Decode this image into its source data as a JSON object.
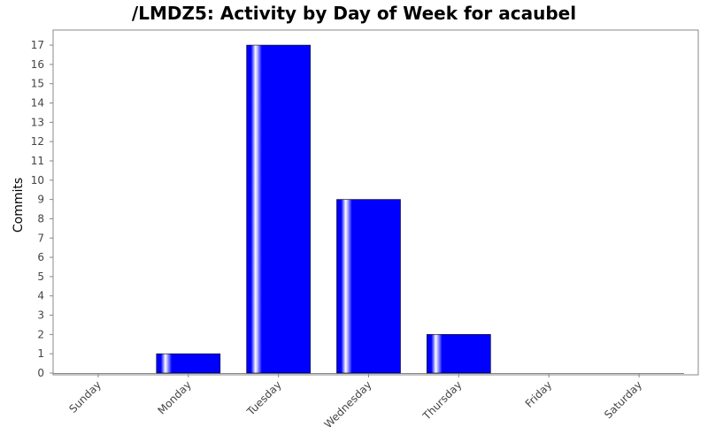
{
  "chart_data": {
    "type": "bar",
    "title": "/LMDZ5: Activity by Day of Week for acaubel",
    "xlabel": "",
    "ylabel": "Commits",
    "categories": [
      "Sunday",
      "Monday",
      "Tuesday",
      "Wednesday",
      "Thursday",
      "Friday",
      "Saturday"
    ],
    "values": [
      0,
      1,
      17,
      9,
      2,
      0,
      0
    ],
    "ylim": [
      0,
      17.8
    ],
    "yticks": [
      0,
      1,
      2,
      3,
      4,
      5,
      6,
      7,
      8,
      9,
      10,
      11,
      12,
      13,
      14,
      15,
      16,
      17
    ],
    "grid": false,
    "legend": "none",
    "bar_color": "#0000ff",
    "bar_highlight_color": "#ffffff"
  }
}
